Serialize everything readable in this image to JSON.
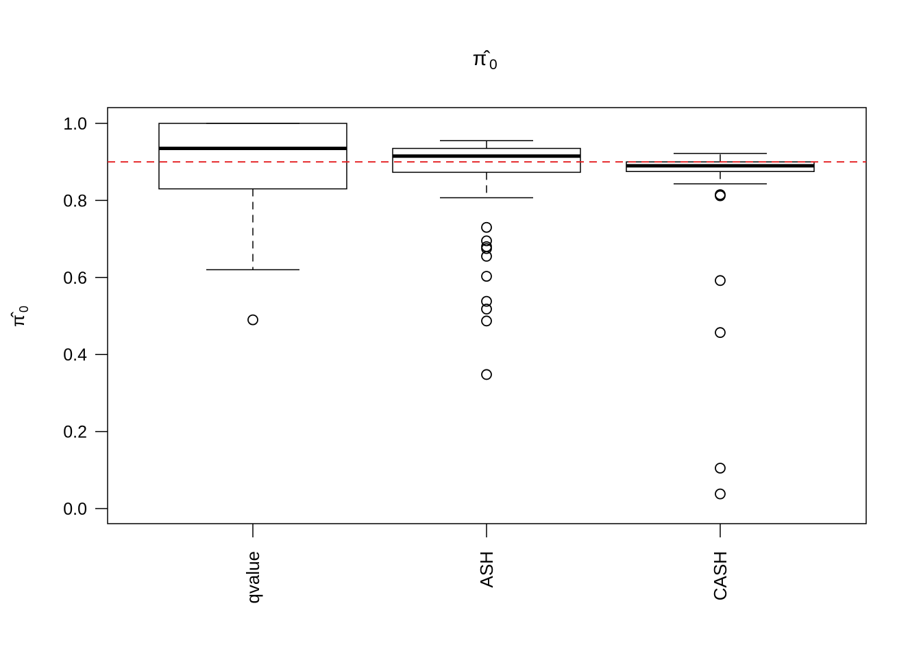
{
  "chart_data": {
    "type": "boxplot",
    "title": "π̂",
    "title_subscript": "0",
    "ylabel": "π̂",
    "ylabel_subscript": "0",
    "ylim": [
      -0.04,
      1.04
    ],
    "y_ticks": [
      "0.0",
      "0.2",
      "0.4",
      "0.6",
      "0.8",
      "1.0"
    ],
    "y_tick_values": [
      0,
      0.2,
      0.4,
      0.6,
      0.8,
      1.0
    ],
    "categories": [
      "qvalue",
      "ASH",
      "CASH"
    ],
    "boxes": [
      {
        "name": "qvalue",
        "whisker_low": 0.62,
        "q1": 0.83,
        "median": 0.935,
        "q3": 1.0,
        "whisker_high": 1.0,
        "outliers": [
          0.49
        ]
      },
      {
        "name": "ASH",
        "whisker_low": 0.807,
        "q1": 0.873,
        "median": 0.915,
        "q3": 0.935,
        "whisker_high": 0.955,
        "outliers": [
          0.73,
          0.695,
          0.68,
          0.675,
          0.655,
          0.603,
          0.538,
          0.518,
          0.487,
          0.348
        ]
      },
      {
        "name": "CASH",
        "whisker_low": 0.843,
        "q1": 0.875,
        "median": 0.89,
        "q3": 0.9,
        "whisker_high": 0.922,
        "outliers": [
          0.815,
          0.812,
          0.592,
          0.457,
          0.105,
          0.038
        ]
      }
    ],
    "reference_line": {
      "value": 0.9,
      "color": "#e41a1c",
      "style": "dashed"
    },
    "colors": {
      "box": "#000000",
      "reference": "#e41a1c"
    }
  }
}
